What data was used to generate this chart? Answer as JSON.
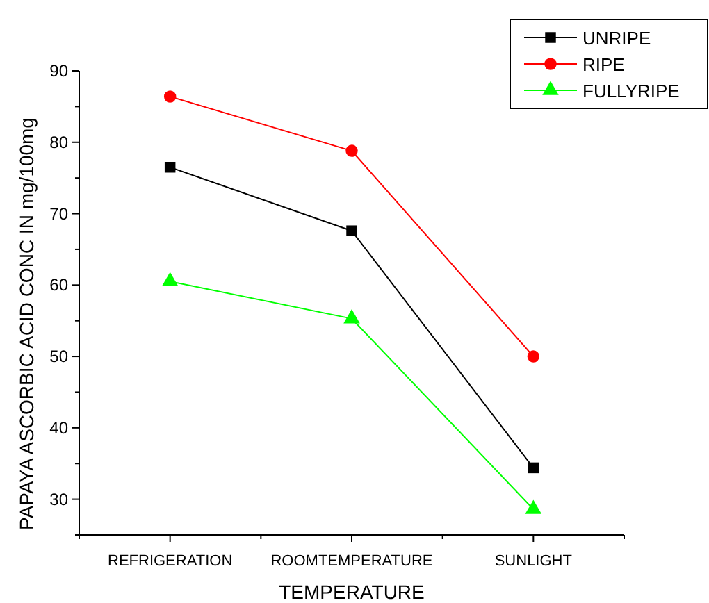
{
  "chart_data": {
    "type": "line",
    "xlabel": "TEMPERATURE",
    "ylabel": "PAPAYA ASCORBIC ACID CONC IN mg/100mg",
    "categories": [
      "REFRIGERATION",
      "ROOMTEMPERATURE",
      "SUNLIGHT"
    ],
    "series": [
      {
        "name": "UNRIPE",
        "color": "#000000",
        "marker": "square",
        "values": [
          76.5,
          67.6,
          34.4
        ]
      },
      {
        "name": "RIPE",
        "color": "#ff0000",
        "marker": "circle",
        "values": [
          86.4,
          78.8,
          50.0
        ]
      },
      {
        "name": "FULLYRIPE",
        "color": "#00ff00",
        "marker": "triangle",
        "values": [
          60.5,
          55.3,
          28.6
        ]
      }
    ],
    "ylim": [
      25,
      90
    ],
    "yticks": [
      {
        "value": 25,
        "label": null
      },
      30,
      {
        "value": 35,
        "label": null
      },
      40,
      {
        "value": 45,
        "label": null
      },
      50,
      {
        "value": 55,
        "label": null
      },
      60,
      {
        "value": 65,
        "label": null
      },
      70,
      {
        "value": 75,
        "label": null
      },
      80,
      {
        "value": 85,
        "label": null
      },
      90
    ],
    "grid": false,
    "legend": "top right",
    "line_style": "solid"
  }
}
